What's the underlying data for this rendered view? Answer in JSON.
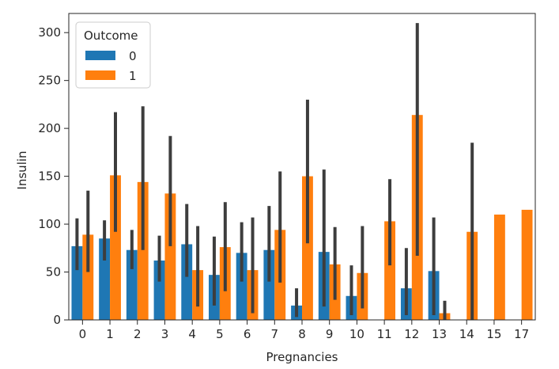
{
  "chart_data": {
    "type": "bar",
    "title": "",
    "xlabel": "Pregnancies",
    "ylabel": "Insulin",
    "categories": [
      "0",
      "1",
      "2",
      "3",
      "4",
      "5",
      "6",
      "7",
      "8",
      "9",
      "10",
      "11",
      "12",
      "13",
      "14",
      "15",
      "17"
    ],
    "ylim": [
      0,
      320
    ],
    "yticks": [
      0,
      50,
      100,
      150,
      200,
      250,
      300
    ],
    "grid": false,
    "legend": {
      "title": "Outcome",
      "placement": "top-left"
    },
    "series": [
      {
        "name": "0",
        "color": "#1f77b4",
        "values": [
          77,
          85,
          73,
          62,
          79,
          47,
          70,
          73,
          15,
          71,
          25,
          null,
          33,
          51,
          null,
          null,
          null
        ],
        "err_low": [
          52,
          62,
          53,
          40,
          45,
          15,
          40,
          40,
          3,
          14,
          5,
          null,
          5,
          5,
          null,
          null,
          null
        ],
        "err_high": [
          106,
          104,
          94,
          88,
          121,
          87,
          102,
          119,
          33,
          157,
          57,
          null,
          75,
          107,
          null,
          null,
          null
        ]
      },
      {
        "name": "1",
        "color": "#ff7f0e",
        "values": [
          89,
          151,
          144,
          132,
          52,
          76,
          52,
          94,
          150,
          58,
          49,
          103,
          214,
          7,
          92,
          110,
          115
        ],
        "err_low": [
          50,
          92,
          73,
          77,
          14,
          30,
          7,
          39,
          80,
          21,
          12,
          57,
          67,
          0,
          0,
          null,
          null
        ],
        "err_high": [
          135,
          217,
          223,
          192,
          98,
          123,
          107,
          155,
          230,
          97,
          98,
          147,
          310,
          20,
          185,
          null,
          null
        ]
      }
    ]
  }
}
